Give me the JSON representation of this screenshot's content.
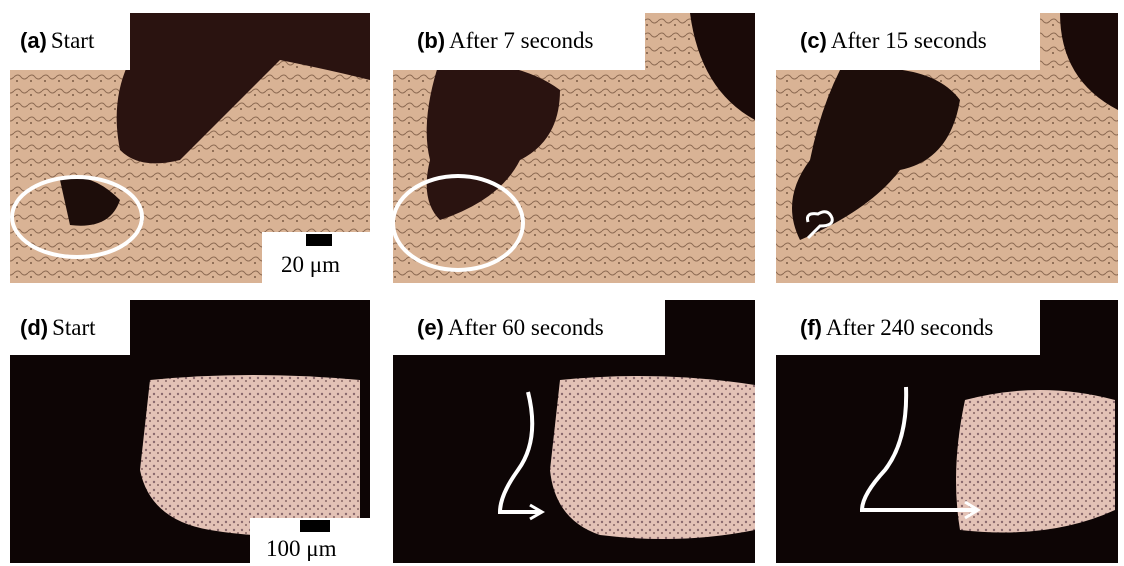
{
  "panels": [
    {
      "label": "(a)",
      "caption": "Start"
    },
    {
      "label": "(b)",
      "caption": "After 7 seconds"
    },
    {
      "label": "(c)",
      "caption": "After 15 seconds"
    },
    {
      "label": "(d)",
      "caption": "Start"
    },
    {
      "label": "(e)",
      "caption": "After 60 seconds"
    },
    {
      "label": "(f)",
      "caption": "After 240 seconds"
    }
  ],
  "scale_bars": [
    "20 μm",
    "100 μm"
  ]
}
